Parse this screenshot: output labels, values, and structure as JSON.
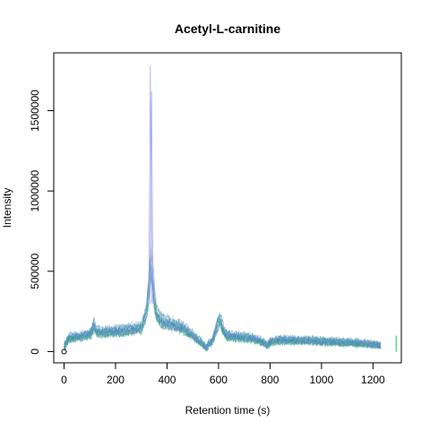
{
  "chart_data": {
    "type": "line",
    "title": "Acetyl-L-carnitine",
    "xlabel": "Retention time (s)",
    "ylabel": "Intensity",
    "xlim": [
      -40,
      1310
    ],
    "ylim": [
      -70000,
      1860000
    ],
    "xticks": [
      0,
      200,
      400,
      600,
      800,
      1000,
      1200
    ],
    "yticks": [
      0,
      500000,
      1000000,
      1500000
    ],
    "xtick_labels": [
      "0",
      "200",
      "400",
      "600",
      "800",
      "1000",
      "1200"
    ],
    "ytick_labels": [
      "0",
      "500000",
      "1000000",
      "1500000"
    ],
    "grid": false,
    "legend": "none",
    "series_colors": [
      "#7b7fe0",
      "#8a95ea",
      "#2f6fcb",
      "#1f9f4f",
      "#33cc66",
      "#22a0a8"
    ],
    "profile": {
      "x": [
        0,
        20,
        60,
        100,
        110,
        115,
        125,
        140,
        200,
        260,
        300,
        320,
        330,
        335,
        340,
        345,
        350,
        360,
        380,
        420,
        460,
        500,
        530,
        555,
        565,
        575,
        585,
        595,
        605,
        615,
        630,
        660,
        700,
        740,
        775,
        790,
        800,
        820,
        860,
        900,
        950,
        1000,
        1050,
        1100,
        1150,
        1200,
        1230
      ],
      "y": [
        30000,
        90000,
        95000,
        110000,
        130000,
        180000,
        130000,
        120000,
        130000,
        140000,
        150000,
        250000,
        420000,
        560000,
        510000,
        430000,
        330000,
        230000,
        190000,
        170000,
        150000,
        100000,
        60000,
        20000,
        60000,
        60000,
        110000,
        170000,
        210000,
        150000,
        100000,
        95000,
        90000,
        80000,
        60000,
        40000,
        60000,
        70000,
        75000,
        70000,
        70000,
        65000,
        62000,
        58000,
        52000,
        45000,
        40000
      ]
    },
    "spikes": [
      {
        "name": "peak-1",
        "x": 335,
        "y": 1780000
      },
      {
        "name": "peak-2",
        "x": 340,
        "y": 1620000
      }
    ],
    "outliers": [
      {
        "name": "point-at-origin",
        "x": 0,
        "y": 0
      },
      {
        "name": "end-point",
        "x": 1290,
        "y": 30000
      }
    ]
  }
}
